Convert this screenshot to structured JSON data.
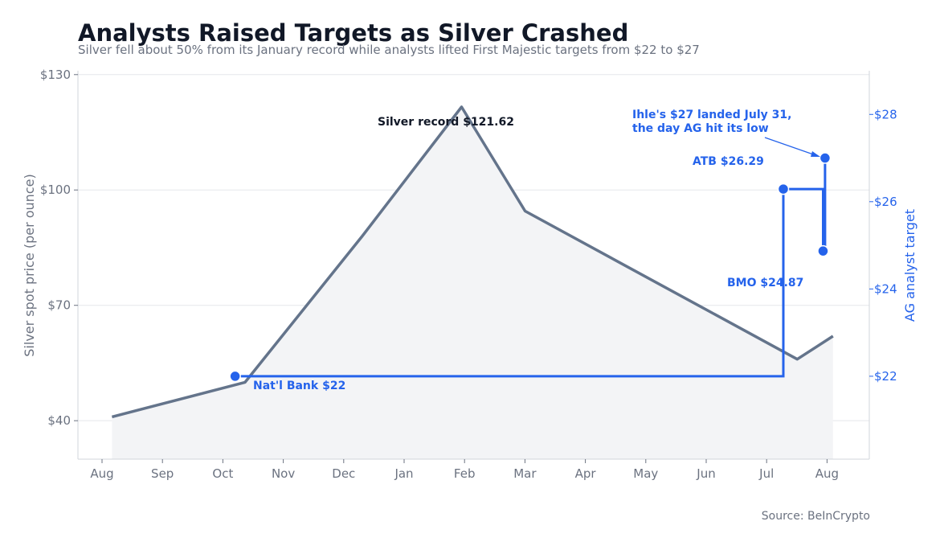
{
  "title": "Analysts Raised Targets as Silver Crashed",
  "subtitle": "Silver fell about 50% from its January record while analysts lifted First Majestic targets from $22 to $27",
  "source": "Source: BeInCrypto",
  "colors": {
    "silver_line": "#64748b",
    "silver_fill": "#f3f4f6",
    "target": "#2563eb",
    "grid": "#e5e7eb",
    "axis": "#d1d5db"
  },
  "chart_data": {
    "type": "line",
    "x_ticks": [
      "Aug",
      "Sep",
      "Oct",
      "Nov",
      "Dec",
      "Jan",
      "Feb",
      "Mar",
      "Apr",
      "May",
      "Jun",
      "Jul",
      "Aug"
    ],
    "y_left": {
      "label": "Silver spot price (per ounce)",
      "ticks": [
        "$40",
        "$70",
        "$100",
        "$130"
      ],
      "tick_values": [
        40,
        70,
        100,
        130
      ],
      "lim": [
        30,
        131
      ]
    },
    "y_right": {
      "label": "AG analyst target",
      "ticks": [
        "$22",
        "$24",
        "$26",
        "$28"
      ],
      "tick_values": [
        22,
        24,
        26,
        28
      ],
      "lim": [
        20.1,
        29
      ]
    },
    "grid": "horizontal",
    "series": [
      {
        "axis": "left",
        "points": [
          {
            "x": "2025-08-06",
            "y": 41.0
          },
          {
            "x": "2025-10-12",
            "y": 50.0
          },
          {
            "x": "2025-12-10",
            "y": 88.0
          },
          {
            "x": "2026-01-29",
            "y": 121.6
          },
          {
            "x": "2026-03-02",
            "y": 94.5
          },
          {
            "x": "2026-07-17",
            "y": 56.0
          },
          {
            "x": "2026-08-04",
            "y": 62.0
          }
        ]
      },
      {
        "axis": "right",
        "step": true,
        "points": [
          {
            "x": "2025-10-07",
            "y": 22.0
          },
          {
            "x": "2026-07-10",
            "y": 22.0
          },
          {
            "x": "2026-07-10",
            "y": 26.29
          },
          {
            "x": "2026-07-30",
            "y": 26.29
          },
          {
            "x": "2026-07-30",
            "y": 24.87
          },
          {
            "x": "2026-07-31",
            "y": 24.87
          },
          {
            "x": "2026-07-31",
            "y": 27.0
          }
        ],
        "markers": [
          {
            "x": "2025-10-07",
            "y": 22.0
          },
          {
            "x": "2026-07-10",
            "y": 26.29
          },
          {
            "x": "2026-07-30",
            "y": 24.87
          },
          {
            "x": "2026-07-31",
            "y": 27.0
          }
        ]
      }
    ],
    "annotations": {
      "record": "Silver record $121.62",
      "ihle_line1": "Ihle's $27 landed July 31,",
      "ihle_line2": "the day AG hit its low",
      "atb": "ATB $26.29",
      "bmo": "BMO $24.87",
      "natl": "Nat'l Bank $22"
    }
  }
}
